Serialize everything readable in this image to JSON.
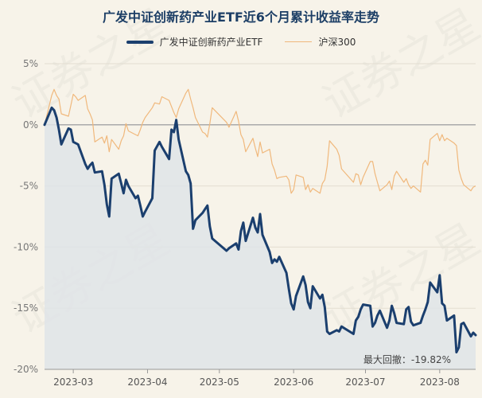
{
  "chart_data": {
    "type": "line",
    "title": "广发中证创新药产业ETF近6个月累计收益率走势",
    "xlabel": "",
    "ylabel": "",
    "y_unit": "%",
    "ylim": [
      -20,
      5
    ],
    "y_ticks": [
      5,
      0,
      -5,
      -10,
      -15,
      -20
    ],
    "y_tick_labels": [
      "5%",
      "0%",
      "-5%",
      "-10%",
      "-15%",
      "-20%"
    ],
    "x_tick_labels": [
      "2023-03",
      "2023-04",
      "2023-05",
      "2023-06",
      "2023-07",
      "2023-08"
    ],
    "x_range": [
      "2023-02-17",
      "2023-08-16"
    ],
    "grid": "horizontal",
    "zero_line": true,
    "legend": "top-center",
    "annotation": "最大回撤：-19.82%",
    "watermark": "证券之星",
    "series": [
      {
        "name": "广发中证创新药产业ETF",
        "color": "#1b3f6e",
        "fill": "area",
        "points": [
          [
            "2023-02-17",
            0.0
          ],
          [
            "2023-02-20",
            1.4
          ],
          [
            "2023-02-21",
            1.2
          ],
          [
            "2023-02-22",
            0.6
          ],
          [
            "2023-02-23",
            -0.4
          ],
          [
            "2023-02-24",
            -1.6
          ],
          [
            "2023-02-27",
            -0.3
          ],
          [
            "2023-02-28",
            -0.4
          ],
          [
            "2023-03-01",
            -1.4
          ],
          [
            "2023-03-02",
            -1.5
          ],
          [
            "2023-03-03",
            -1.6
          ],
          [
            "2023-03-06",
            -3.2
          ],
          [
            "2023-03-07",
            -3.6
          ],
          [
            "2023-03-08",
            -3.3
          ],
          [
            "2023-03-09",
            -3.1
          ],
          [
            "2023-03-10",
            -3.9
          ],
          [
            "2023-03-13",
            -3.8
          ],
          [
            "2023-03-14",
            -4.9
          ],
          [
            "2023-03-15",
            -6.5
          ],
          [
            "2023-03-16",
            -7.5
          ],
          [
            "2023-03-17",
            -4.4
          ],
          [
            "2023-03-20",
            -4.0
          ],
          [
            "2023-03-21",
            -4.8
          ],
          [
            "2023-03-22",
            -5.6
          ],
          [
            "2023-03-23",
            -4.5
          ],
          [
            "2023-03-24",
            -5.0
          ],
          [
            "2023-03-27",
            -6.0
          ],
          [
            "2023-03-28",
            -5.8
          ],
          [
            "2023-03-29",
            -6.6
          ],
          [
            "2023-03-30",
            -7.5
          ],
          [
            "2023-03-31",
            -7.1
          ],
          [
            "2023-04-03",
            -6.0
          ],
          [
            "2023-04-04",
            -2.1
          ],
          [
            "2023-04-06",
            -1.4
          ],
          [
            "2023-04-07",
            -1.8
          ],
          [
            "2023-04-10",
            -2.8
          ],
          [
            "2023-04-11",
            -0.4
          ],
          [
            "2023-04-12",
            -0.6
          ],
          [
            "2023-04-13",
            0.4
          ],
          [
            "2023-04-14",
            -1.2
          ],
          [
            "2023-04-17",
            -3.8
          ],
          [
            "2023-04-18",
            -4.1
          ],
          [
            "2023-04-19",
            -4.8
          ],
          [
            "2023-04-20",
            -8.5
          ],
          [
            "2023-04-21",
            -7.8
          ],
          [
            "2023-04-24",
            -7.2
          ],
          [
            "2023-04-25",
            -6.9
          ],
          [
            "2023-04-26",
            -6.6
          ],
          [
            "2023-04-27",
            -8.3
          ],
          [
            "2023-04-28",
            -9.3
          ],
          [
            "2023-05-04",
            -10.3
          ],
          [
            "2023-05-05",
            -10.1
          ],
          [
            "2023-05-08",
            -9.7
          ],
          [
            "2023-05-09",
            -10.2
          ],
          [
            "2023-05-10",
            -8.7
          ],
          [
            "2023-05-11",
            -8.0
          ],
          [
            "2023-05-12",
            -9.5
          ],
          [
            "2023-05-15",
            -7.6
          ],
          [
            "2023-05-16",
            -8.4
          ],
          [
            "2023-05-17",
            -8.8
          ],
          [
            "2023-05-18",
            -7.3
          ],
          [
            "2023-05-19",
            -9.0
          ],
          [
            "2023-05-22",
            -10.4
          ],
          [
            "2023-05-23",
            -11.3
          ],
          [
            "2023-05-24",
            -11.0
          ],
          [
            "2023-05-25",
            -11.2
          ],
          [
            "2023-05-26",
            -10.8
          ],
          [
            "2023-05-29",
            -12.1
          ],
          [
            "2023-05-30",
            -13.4
          ],
          [
            "2023-05-31",
            -14.6
          ],
          [
            "2023-06-01",
            -15.1
          ],
          [
            "2023-06-02",
            -14.0
          ],
          [
            "2023-06-05",
            -12.4
          ],
          [
            "2023-06-06",
            -13.1
          ],
          [
            "2023-06-07",
            -14.5
          ],
          [
            "2023-06-08",
            -15.0
          ],
          [
            "2023-06-09",
            -13.2
          ],
          [
            "2023-06-12",
            -14.2
          ],
          [
            "2023-06-13",
            -13.9
          ],
          [
            "2023-06-14",
            -14.9
          ],
          [
            "2023-06-15",
            -16.9
          ],
          [
            "2023-06-16",
            -17.1
          ],
          [
            "2023-06-19",
            -16.8
          ],
          [
            "2023-06-20",
            -16.9
          ],
          [
            "2023-06-21",
            -16.5
          ],
          [
            "2023-06-26",
            -17.1
          ],
          [
            "2023-06-27",
            -16.0
          ],
          [
            "2023-06-28",
            -15.7
          ],
          [
            "2023-06-29",
            -15.1
          ],
          [
            "2023-06-30",
            -14.7
          ],
          [
            "2023-07-03",
            -14.8
          ],
          [
            "2023-07-04",
            -16.5
          ],
          [
            "2023-07-05",
            -16.2
          ],
          [
            "2023-07-06",
            -15.6
          ],
          [
            "2023-07-07",
            -15.2
          ],
          [
            "2023-07-10",
            -16.6
          ],
          [
            "2023-07-11",
            -16.0
          ],
          [
            "2023-07-12",
            -14.8
          ],
          [
            "2023-07-13",
            -15.4
          ],
          [
            "2023-07-14",
            -16.2
          ],
          [
            "2023-07-17",
            -16.3
          ],
          [
            "2023-07-18",
            -15.1
          ],
          [
            "2023-07-19",
            -14.9
          ],
          [
            "2023-07-20",
            -16.1
          ],
          [
            "2023-07-21",
            -16.4
          ],
          [
            "2023-07-24",
            -16.2
          ],
          [
            "2023-07-25",
            -15.6
          ],
          [
            "2023-07-26",
            -15.1
          ],
          [
            "2023-07-27",
            -14.5
          ],
          [
            "2023-07-28",
            -12.9
          ],
          [
            "2023-07-31",
            -13.7
          ],
          [
            "2023-08-01",
            -12.3
          ],
          [
            "2023-08-02",
            -14.6
          ],
          [
            "2023-08-03",
            -14.8
          ],
          [
            "2023-08-04",
            -16.0
          ],
          [
            "2023-08-07",
            -15.6
          ],
          [
            "2023-08-08",
            -18.6
          ],
          [
            "2023-08-09",
            -18.2
          ],
          [
            "2023-08-10",
            -16.3
          ],
          [
            "2023-08-11",
            -16.2
          ],
          [
            "2023-08-14",
            -17.3
          ],
          [
            "2023-08-15",
            -17.0
          ],
          [
            "2023-08-16",
            -17.2
          ]
        ]
      },
      {
        "name": "沪深300",
        "color": "#f0b87c",
        "fill": "none",
        "points": [
          [
            "2023-02-17",
            0.0
          ],
          [
            "2023-02-20",
            2.4
          ],
          [
            "2023-02-21",
            2.9
          ],
          [
            "2023-02-22",
            2.4
          ],
          [
            "2023-02-23",
            2.1
          ],
          [
            "2023-02-24",
            0.9
          ],
          [
            "2023-02-27",
            0.7
          ],
          [
            "2023-02-28",
            1.6
          ],
          [
            "2023-03-01",
            2.5
          ],
          [
            "2023-03-02",
            2.3
          ],
          [
            "2023-03-03",
            2.0
          ],
          [
            "2023-03-06",
            2.4
          ],
          [
            "2023-03-07",
            1.3
          ],
          [
            "2023-03-08",
            0.9
          ],
          [
            "2023-03-09",
            0.4
          ],
          [
            "2023-03-10",
            -1.4
          ],
          [
            "2023-03-13",
            -1.0
          ],
          [
            "2023-03-14",
            -1.5
          ],
          [
            "2023-03-15",
            -0.9
          ],
          [
            "2023-03-16",
            -2.2
          ],
          [
            "2023-03-17",
            -1.2
          ],
          [
            "2023-03-20",
            -2.0
          ],
          [
            "2023-03-21",
            -1.3
          ],
          [
            "2023-03-22",
            -0.9
          ],
          [
            "2023-03-23",
            0.1
          ],
          [
            "2023-03-24",
            -0.5
          ],
          [
            "2023-03-27",
            -0.8
          ],
          [
            "2023-03-28",
            -0.9
          ],
          [
            "2023-03-29",
            -0.4
          ],
          [
            "2023-03-30",
            0.2
          ],
          [
            "2023-03-31",
            0.6
          ],
          [
            "2023-04-03",
            1.4
          ],
          [
            "2023-04-04",
            1.8
          ],
          [
            "2023-04-06",
            1.7
          ],
          [
            "2023-04-07",
            2.3
          ],
          [
            "2023-04-10",
            2.0
          ],
          [
            "2023-04-11",
            1.5
          ],
          [
            "2023-04-12",
            1.0
          ],
          [
            "2023-04-13",
            0.6
          ],
          [
            "2023-04-14",
            1.3
          ],
          [
            "2023-04-17",
            2.6
          ],
          [
            "2023-04-18",
            2.9
          ],
          [
            "2023-04-19",
            2.1
          ],
          [
            "2023-04-20",
            1.4
          ],
          [
            "2023-04-21",
            0.6
          ],
          [
            "2023-04-24",
            -0.6
          ],
          [
            "2023-04-25",
            -0.7
          ],
          [
            "2023-04-26",
            -1.0
          ],
          [
            "2023-04-27",
            0.1
          ],
          [
            "2023-04-28",
            1.4
          ],
          [
            "2023-05-04",
            0.2
          ],
          [
            "2023-05-05",
            -0.2
          ],
          [
            "2023-05-08",
            1.1
          ],
          [
            "2023-05-09",
            0.3
          ],
          [
            "2023-05-10",
            -0.8
          ],
          [
            "2023-05-11",
            -1.2
          ],
          [
            "2023-05-12",
            -2.2
          ],
          [
            "2023-05-15",
            -1.1
          ],
          [
            "2023-05-16",
            -1.9
          ],
          [
            "2023-05-17",
            -2.6
          ],
          [
            "2023-05-18",
            -1.4
          ],
          [
            "2023-05-19",
            -2.3
          ],
          [
            "2023-05-22",
            -2.0
          ],
          [
            "2023-05-23",
            -3.2
          ],
          [
            "2023-05-24",
            -3.7
          ],
          [
            "2023-05-25",
            -4.4
          ],
          [
            "2023-05-26",
            -4.3
          ],
          [
            "2023-05-29",
            -4.2
          ],
          [
            "2023-05-30",
            -4.5
          ],
          [
            "2023-05-31",
            -5.6
          ],
          [
            "2023-06-01",
            -5.3
          ],
          [
            "2023-06-02",
            -4.1
          ],
          [
            "2023-06-05",
            -4.3
          ],
          [
            "2023-06-06",
            -5.3
          ],
          [
            "2023-06-07",
            -4.9
          ],
          [
            "2023-06-08",
            -5.5
          ],
          [
            "2023-06-09",
            -5.2
          ],
          [
            "2023-06-12",
            -5.6
          ],
          [
            "2023-06-13",
            -4.8
          ],
          [
            "2023-06-14",
            -4.5
          ],
          [
            "2023-06-15",
            -3.4
          ],
          [
            "2023-06-16",
            -1.3
          ],
          [
            "2023-06-19",
            -2.0
          ],
          [
            "2023-06-20",
            -2.5
          ],
          [
            "2023-06-21",
            -3.6
          ],
          [
            "2023-06-26",
            -4.7
          ],
          [
            "2023-06-27",
            -4.0
          ],
          [
            "2023-06-28",
            -4.1
          ],
          [
            "2023-06-29",
            -4.9
          ],
          [
            "2023-06-30",
            -4.3
          ],
          [
            "2023-07-03",
            -3.0
          ],
          [
            "2023-07-04",
            -3.0
          ],
          [
            "2023-07-05",
            -4.0
          ],
          [
            "2023-07-06",
            -4.7
          ],
          [
            "2023-07-07",
            -5.4
          ],
          [
            "2023-07-10",
            -4.9
          ],
          [
            "2023-07-11",
            -4.6
          ],
          [
            "2023-07-12",
            -5.3
          ],
          [
            "2023-07-13",
            -4.2
          ],
          [
            "2023-07-14",
            -3.8
          ],
          [
            "2023-07-17",
            -4.7
          ],
          [
            "2023-07-18",
            -4.4
          ],
          [
            "2023-07-19",
            -4.9
          ],
          [
            "2023-07-20",
            -5.2
          ],
          [
            "2023-07-21",
            -5.0
          ],
          [
            "2023-07-24",
            -5.5
          ],
          [
            "2023-07-25",
            -3.2
          ],
          [
            "2023-07-26",
            -2.9
          ],
          [
            "2023-07-27",
            -3.3
          ],
          [
            "2023-07-28",
            -1.2
          ],
          [
            "2023-07-31",
            -0.7
          ],
          [
            "2023-08-01",
            -1.3
          ],
          [
            "2023-08-02",
            -0.8
          ],
          [
            "2023-08-03",
            -1.3
          ],
          [
            "2023-08-04",
            -1.1
          ],
          [
            "2023-08-07",
            -1.5
          ],
          [
            "2023-08-08",
            -1.7
          ],
          [
            "2023-08-09",
            -3.7
          ],
          [
            "2023-08-10",
            -4.4
          ],
          [
            "2023-08-11",
            -4.9
          ],
          [
            "2023-08-14",
            -5.4
          ],
          [
            "2023-08-15",
            -5.1
          ],
          [
            "2023-08-16",
            -5.0
          ]
        ]
      }
    ]
  }
}
